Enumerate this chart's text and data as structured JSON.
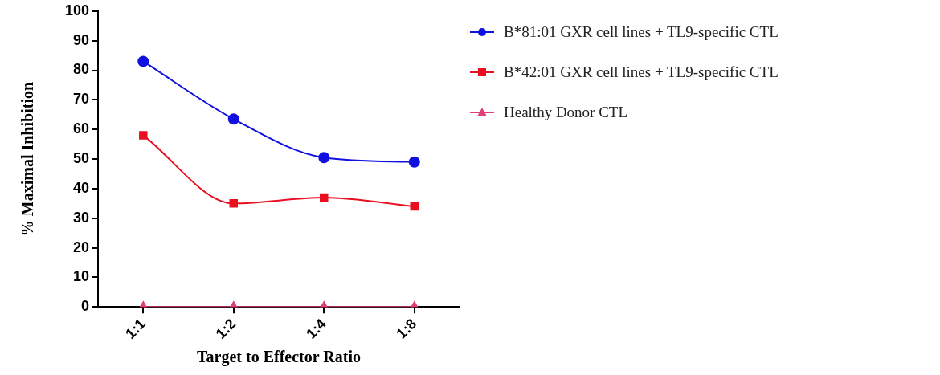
{
  "chart_data": {
    "type": "line",
    "xlabel": "Target to Effector Ratio",
    "ylabel": "% Maximal Inhibition",
    "categories": [
      "1:1",
      "1:2",
      "1:4",
      "1:8"
    ],
    "series": [
      {
        "name": "B*81:01 GXR cell lines + TL9-specific CTL",
        "color": "#1010e0",
        "marker": "circle",
        "values": [
          83,
          63.5,
          50.5,
          49
        ]
      },
      {
        "name": "B*42:01 GXR cell lines + TL9-specific CTL",
        "color": "#e81020",
        "marker": "square",
        "values": [
          58,
          35,
          37,
          34
        ]
      },
      {
        "name": "Healthy Donor CTL",
        "color": "#e0407a",
        "marker": "triangle",
        "values": [
          0,
          0,
          0,
          0
        ]
      }
    ],
    "ylim": [
      0,
      100
    ],
    "yticks": [
      0,
      10,
      20,
      30,
      40,
      50,
      60,
      70,
      80,
      90,
      100
    ],
    "legend": "top right",
    "grid": false,
    "line_style": "solid"
  }
}
